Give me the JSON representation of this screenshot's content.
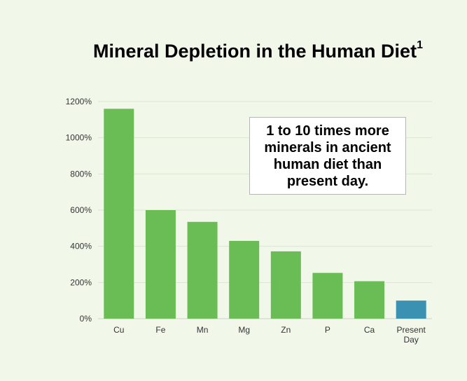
{
  "chart_data": {
    "type": "bar",
    "title": "Mineral Depletion in the Human Diet",
    "title_superscript": "1",
    "categories": [
      "Cu",
      "Fe",
      "Mn",
      "Mg",
      "Zn",
      "P",
      "Ca",
      "Present Day"
    ],
    "values": [
      1160,
      600,
      535,
      430,
      372,
      253,
      207,
      100
    ],
    "ylim": [
      0,
      1200
    ],
    "yticks": [
      0,
      200,
      400,
      600,
      800,
      1000,
      1200
    ],
    "ytick_labels": [
      "0%",
      "200%",
      "400%",
      "600%",
      "800%",
      "1000%",
      "1200%"
    ],
    "grid": true,
    "colors": {
      "default_bar": "#6abd55",
      "highlight_bar": "#3b91b2",
      "grid": "#d9e6cf",
      "axis": "#cfcfcf"
    },
    "highlight_index": 7,
    "annotation": "1 to 10 times more minerals in ancient human diet than present day."
  }
}
